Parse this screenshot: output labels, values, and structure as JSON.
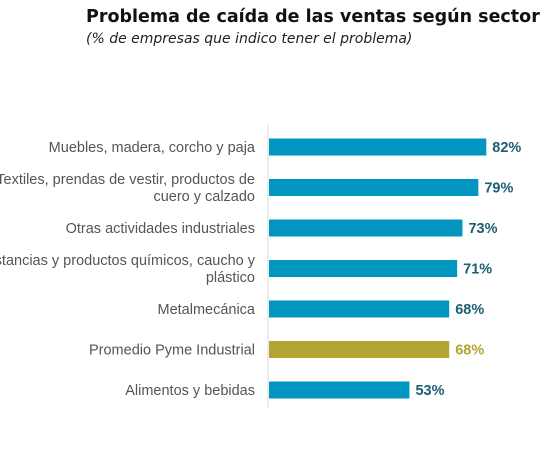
{
  "chart_data": {
    "type": "bar",
    "orientation": "horizontal",
    "title": "Problema de caída de las ventas según sector",
    "subtitle": "(% de empresas que indico tener el problema)",
    "categories": [
      [
        "Muebles, madera, corcho y paja"
      ],
      [
        "Textiles, prendas de vestir, productos de",
        "cuero y calzado"
      ],
      [
        "Otras actividades industriales"
      ],
      [
        "Sustancias y productos químicos, caucho y",
        "plástico"
      ],
      [
        "Metalmecánica"
      ],
      [
        "Promedio Pyme Industrial"
      ],
      [
        "Alimentos y bebidas"
      ]
    ],
    "values": [
      82,
      79,
      73,
      71,
      68,
      68,
      53
    ],
    "value_labels": [
      "82%",
      "79%",
      "73%",
      "71%",
      "68%",
      "68%",
      "53%"
    ],
    "xlim": [
      0,
      100
    ],
    "grid": false,
    "legend": "none",
    "colors": {
      "bar": "#0096bf",
      "highlight_bar": "#b3a532",
      "value_label": "#1a5f72",
      "highlight_value_label": "#b3a532",
      "axis": "#d9d9d9"
    },
    "highlight_index": 5
  }
}
